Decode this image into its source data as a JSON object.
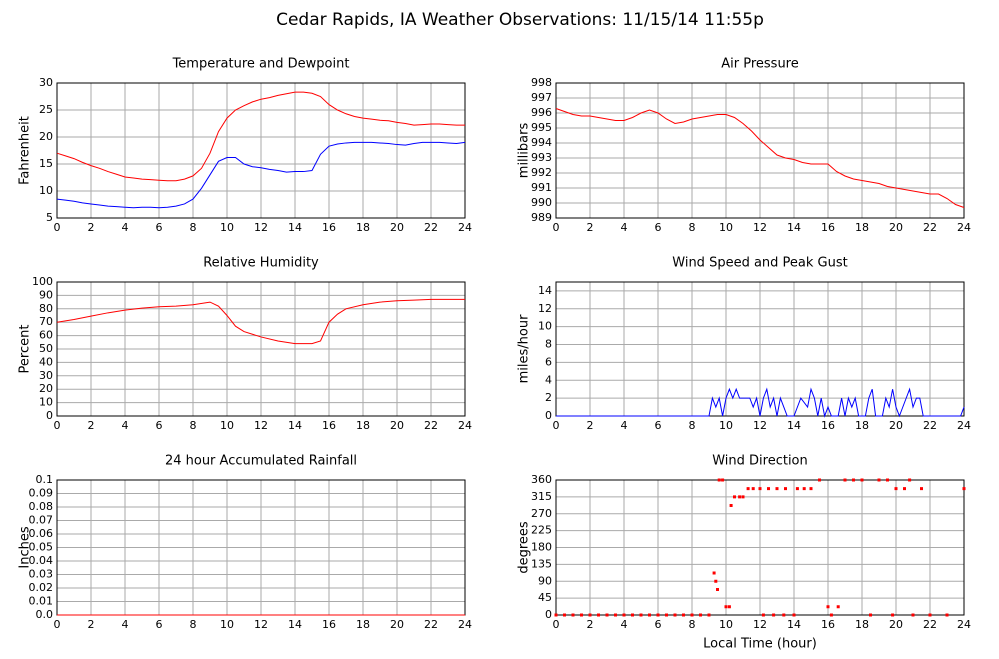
{
  "title": "Cedar Rapids, IA Weather Observations: 11/15/14 11:55p",
  "chart_data": [
    {
      "type": "line",
      "title": "Temperature and Dewpoint",
      "ylabel": "Fahrenheit",
      "xlim": [
        0,
        24
      ],
      "xticks": [
        0,
        2,
        4,
        6,
        8,
        10,
        12,
        14,
        16,
        18,
        20,
        22,
        24
      ],
      "ylim": [
        5,
        30
      ],
      "yticks": [
        5,
        10,
        15,
        20,
        25,
        30
      ],
      "grid": true,
      "x": [
        0,
        0.5,
        1,
        1.5,
        2,
        2.5,
        3,
        3.5,
        4,
        4.5,
        5,
        5.5,
        6,
        6.5,
        7,
        7.5,
        8,
        8.5,
        9,
        9.5,
        10,
        10.5,
        11,
        11.5,
        12,
        12.5,
        13,
        13.5,
        14,
        14.5,
        15,
        15.5,
        16,
        16.5,
        17,
        17.5,
        18,
        18.5,
        19,
        19.5,
        20,
        20.5,
        21,
        21.5,
        22,
        22.5,
        23,
        23.5,
        24
      ],
      "series": [
        {
          "color": "#ff0000",
          "values": [
            17,
            16.5,
            16,
            15.3,
            14.7,
            14.2,
            13.6,
            13.1,
            12.6,
            12.4,
            12.2,
            12.1,
            12,
            11.9,
            11.9,
            12.2,
            12.8,
            14.2,
            17,
            21,
            23.5,
            25,
            25.8,
            26.5,
            27,
            27.3,
            27.7,
            28,
            28.3,
            28.3,
            28.1,
            27.5,
            26,
            25,
            24.3,
            23.8,
            23.5,
            23.3,
            23.1,
            23,
            22.7,
            22.5,
            22.2,
            22.3,
            22.4,
            22.4,
            22.3,
            22.2,
            22.2
          ]
        },
        {
          "color": "#0000ff",
          "values": [
            8.5,
            8.3,
            8.1,
            7.8,
            7.6,
            7.4,
            7.2,
            7.1,
            7,
            6.9,
            7,
            7,
            6.9,
            7,
            7.2,
            7.6,
            8.5,
            10.5,
            13,
            15.5,
            16.2,
            16.2,
            15,
            14.5,
            14.3,
            14,
            13.8,
            13.5,
            13.6,
            13.6,
            13.8,
            16.8,
            18.3,
            18.7,
            18.9,
            19,
            19,
            19,
            18.9,
            18.8,
            18.6,
            18.5,
            18.8,
            19,
            19,
            19,
            18.9,
            18.8,
            19
          ]
        }
      ]
    },
    {
      "type": "line",
      "title": "Air Pressure",
      "ylabel": "millibars",
      "xlim": [
        0,
        24
      ],
      "xticks": [
        0,
        2,
        4,
        6,
        8,
        10,
        12,
        14,
        16,
        18,
        20,
        22,
        24
      ],
      "ylim": [
        989,
        998
      ],
      "yticks": [
        989,
        990,
        991,
        992,
        993,
        994,
        995,
        996,
        997,
        998
      ],
      "grid": true,
      "x": [
        0,
        0.5,
        1,
        1.5,
        2,
        2.5,
        3,
        3.5,
        4,
        4.5,
        5,
        5.5,
        6,
        6.5,
        7,
        7.5,
        8,
        8.5,
        9,
        9.5,
        10,
        10.5,
        11,
        11.5,
        12,
        12.5,
        13,
        13.5,
        14,
        14.5,
        15,
        15.5,
        16,
        16.5,
        17,
        17.5,
        18,
        18.5,
        19,
        19.5,
        20,
        20.5,
        21,
        21.5,
        22,
        22.5,
        23,
        23.5,
        24
      ],
      "series": [
        {
          "color": "#ff0000",
          "values": [
            996.3,
            996.1,
            995.9,
            995.8,
            995.8,
            995.7,
            995.6,
            995.5,
            995.5,
            995.7,
            996,
            996.2,
            996,
            995.6,
            995.3,
            995.4,
            995.6,
            995.7,
            995.8,
            995.9,
            995.9,
            995.7,
            995.3,
            994.8,
            994.2,
            993.7,
            993.2,
            993,
            992.9,
            992.7,
            992.6,
            992.6,
            992.6,
            992.1,
            991.8,
            991.6,
            991.5,
            991.4,
            991.3,
            991.1,
            991,
            990.9,
            990.8,
            990.7,
            990.6,
            990.6,
            990.3,
            989.9,
            989.7
          ]
        }
      ]
    },
    {
      "type": "line",
      "title": "Relative Humidity",
      "ylabel": "Percent",
      "xlim": [
        0,
        24
      ],
      "xticks": [
        0,
        2,
        4,
        6,
        8,
        10,
        12,
        14,
        16,
        18,
        20,
        22,
        24
      ],
      "ylim": [
        0,
        100
      ],
      "yticks": [
        0,
        10,
        20,
        30,
        40,
        50,
        60,
        70,
        80,
        90,
        100
      ],
      "grid": true,
      "x": [
        0,
        1,
        2,
        3,
        4,
        5,
        6,
        7,
        8,
        9,
        9.5,
        10,
        10.5,
        11,
        12,
        13,
        14,
        15,
        15.5,
        16,
        16.5,
        17,
        18,
        19,
        20,
        21,
        22,
        23,
        24
      ],
      "series": [
        {
          "color": "#ff0000",
          "values": [
            70,
            72,
            74.5,
            77,
            79,
            80.5,
            81.5,
            82,
            83,
            85,
            82,
            75,
            67,
            63,
            59,
            56,
            54,
            54,
            56,
            70,
            76,
            80,
            83,
            85,
            86,
            86.5,
            87,
            87,
            87
          ]
        }
      ]
    },
    {
      "type": "line",
      "title": "Wind Speed and Peak Gust",
      "ylabel": "miles/hour",
      "xlim": [
        0,
        24
      ],
      "xticks": [
        0,
        2,
        4,
        6,
        8,
        10,
        12,
        14,
        16,
        18,
        20,
        22,
        24
      ],
      "ylim": [
        0,
        15
      ],
      "yticks": [
        0,
        2,
        4,
        6,
        8,
        10,
        12,
        14
      ],
      "grid": true,
      "x": [
        0,
        9,
        9.2,
        9.4,
        9.6,
        9.8,
        10,
        10.2,
        10.4,
        10.6,
        10.8,
        11,
        11.4,
        11.6,
        11.8,
        12,
        12.2,
        12.4,
        12.6,
        12.8,
        13,
        13.2,
        13.4,
        13.6,
        14,
        14.4,
        14.8,
        15,
        15.2,
        15.4,
        15.6,
        15.8,
        16,
        16.2,
        16.6,
        16.8,
        17,
        17.2,
        17.4,
        17.6,
        17.8,
        18.2,
        18.4,
        18.6,
        18.8,
        19.2,
        19.4,
        19.6,
        19.8,
        20,
        20.2,
        20.6,
        20.8,
        21,
        21.2,
        21.4,
        21.6,
        22,
        23.8,
        24
      ],
      "series": [
        {
          "color": "#0000ff",
          "values": [
            0,
            0,
            2,
            1,
            2,
            0,
            2,
            3,
            2,
            3,
            2,
            2,
            2,
            1,
            2,
            0,
            2,
            3,
            1,
            2,
            0,
            2,
            1,
            0,
            0,
            2,
            1,
            3,
            2,
            0,
            2,
            0,
            1,
            0,
            0,
            2,
            0,
            2,
            1,
            2,
            0,
            0,
            2,
            3,
            0,
            0,
            2,
            1,
            3,
            1,
            0,
            2,
            3,
            1,
            2,
            2,
            0,
            0,
            0,
            1
          ]
        }
      ]
    },
    {
      "type": "line",
      "title": "24 hour Accumulated Rainfall",
      "ylabel": "Inches",
      "xlim": [
        0,
        24
      ],
      "xticks": [
        0,
        2,
        4,
        6,
        8,
        10,
        12,
        14,
        16,
        18,
        20,
        22,
        24
      ],
      "ylim": [
        0,
        0.1
      ],
      "yticks": [
        {
          "value": 0,
          "label": "0.0"
        },
        0.01,
        0.02,
        0.03,
        0.04,
        0.05,
        0.06,
        0.07,
        0.08,
        0.09,
        0.1
      ],
      "grid": true,
      "x": [
        0,
        24
      ],
      "series": [
        {
          "color": "#ff0000",
          "values": [
            0,
            0
          ]
        }
      ]
    },
    {
      "type": "scatter",
      "title": "Wind Direction",
      "ylabel": "degrees",
      "xlabel": "Local Time (hour)",
      "xlim": [
        0,
        24
      ],
      "xticks": [
        0,
        2,
        4,
        6,
        8,
        10,
        12,
        14,
        16,
        18,
        20,
        22,
        24
      ],
      "ylim": [
        0,
        360
      ],
      "yticks": [
        0,
        45,
        90,
        135,
        180,
        225,
        270,
        315,
        360
      ],
      "grid": true,
      "x": [
        0,
        0.5,
        1,
        1.5,
        2,
        2.5,
        3,
        3.5,
        4,
        4.5,
        5,
        5.5,
        6,
        6.5,
        7,
        7.5,
        8,
        8.5,
        9,
        9.3,
        9.4,
        9.5,
        9.6,
        9.8,
        10,
        10.2,
        10.3,
        10.5,
        10.8,
        11,
        11.3,
        11.6,
        12,
        12.2,
        12.5,
        12.8,
        13,
        13.4,
        13.5,
        14,
        14.2,
        14.6,
        15,
        15.5,
        16,
        16.2,
        16.6,
        17,
        17.5,
        18,
        18.5,
        19,
        19.5,
        19.8,
        20,
        20.5,
        20.8,
        21,
        21.5,
        22,
        23,
        24
      ],
      "series": [
        {
          "color": "#ff0000",
          "values": [
            0,
            0,
            0,
            0,
            0,
            0,
            0,
            0,
            0,
            0,
            0,
            0,
            0,
            0,
            0,
            0,
            0,
            0,
            0,
            112,
            90,
            68,
            360,
            360,
            22,
            22,
            292,
            315,
            315,
            315,
            337,
            337,
            337,
            0,
            337,
            0,
            337,
            0,
            337,
            0,
            337,
            337,
            337,
            360,
            22,
            0,
            22,
            360,
            360,
            360,
            0,
            360,
            360,
            0,
            337,
            337,
            360,
            0,
            337,
            0,
            0,
            337
          ]
        }
      ]
    }
  ]
}
